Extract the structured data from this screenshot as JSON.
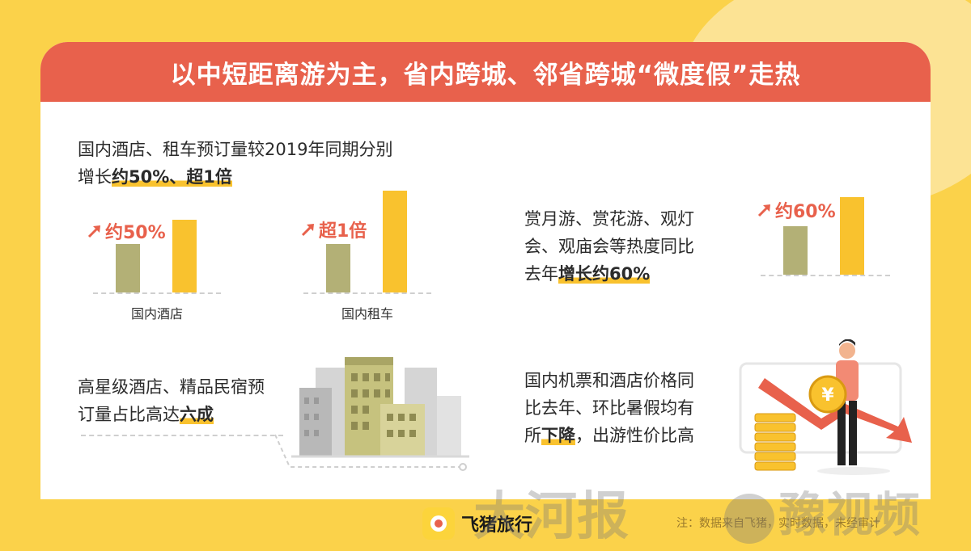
{
  "header": {
    "title": "以中短距离游为主，省内跨城、邻省跨城“微度假”走热"
  },
  "section1": {
    "text_line1": "国内酒店、租车预订量较2019年同期分别",
    "text_prefix": "增长",
    "text_highlight": "约50%、超1倍"
  },
  "section2": {
    "text_line1": "赏月游、赏花游、观灯",
    "text_line2": "会、观庙会等热度同比",
    "text_prefix": "去年",
    "text_highlight": "增长约60%"
  },
  "section3": {
    "text_line1": "高星级酒店、精品民宿预",
    "text_prefix": "订量占比高达",
    "text_highlight": "六成"
  },
  "section4": {
    "text_line1": "国内机票和酒店价格同",
    "text_line2": "比去年、环比暑假均有",
    "text_prefix": "所",
    "text_highlight": "下降",
    "text_suffix": "，出游性价比高"
  },
  "chart_data": [
    {
      "type": "bar",
      "categories": [
        "国内酒店"
      ],
      "series": [
        {
          "values": [
            1.0
          ]
        },
        {
          "values": [
            1.5
          ]
        }
      ],
      "annotation": "约50%"
    },
    {
      "type": "bar",
      "categories": [
        "国内租车"
      ],
      "series": [
        {
          "values": [
            1.0
          ]
        },
        {
          "values": [
            2.1
          ]
        }
      ],
      "annotation": "超1倍"
    },
    {
      "type": "bar",
      "categories": [
        ""
      ],
      "series": [
        {
          "values": [
            1.0
          ]
        },
        {
          "values": [
            1.6
          ]
        }
      ],
      "annotation": "约60%"
    }
  ],
  "colors": {
    "prev_bar": "#b3b076",
    "curr_bar": "#f9c22e",
    "accent": "#e8614c",
    "header": "#e8614c"
  },
  "coin_symbol": "¥",
  "footer": {
    "logo_text": "飞猪旅行",
    "note": "注：数据来自飞猪，实时数据，未经审计"
  },
  "watermarks": {
    "left": "大河报",
    "right": "豫视频"
  }
}
